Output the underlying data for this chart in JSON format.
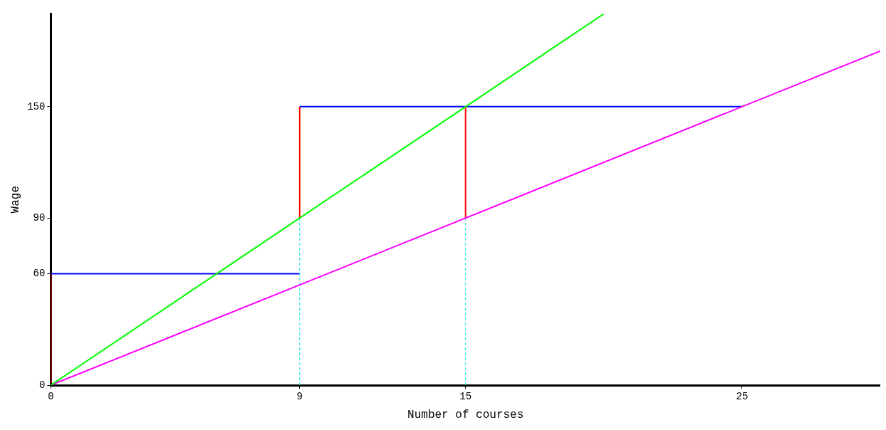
{
  "chart_data": {
    "type": "line",
    "xlabel": "Number of courses",
    "ylabel": "Wage",
    "xlim": [
      0,
      30
    ],
    "xticks": [
      0,
      9,
      15,
      25
    ],
    "ylim": [
      0,
      200
    ],
    "yticks": [
      0,
      60,
      90,
      150
    ],
    "grid": false,
    "legend": false,
    "marker": "none",
    "series": [
      {
        "color": "#00ff00",
        "x": [
          0,
          20
        ],
        "values": [
          0,
          200
        ],
        "line_style": "solid"
      },
      {
        "color": "#ff00ff",
        "x": [
          0,
          30
        ],
        "values": [
          0,
          180
        ],
        "line_style": "solid"
      },
      {
        "color": "#00e5ee",
        "x": [
          9,
          9,
          null,
          15,
          15
        ],
        "values": [
          0,
          90,
          null,
          0,
          90
        ],
        "line_style": "dashed"
      },
      {
        "color": "#0000ff",
        "x": [
          0,
          9,
          null,
          9,
          25
        ],
        "values": [
          60,
          60,
          null,
          150,
          150
        ],
        "line_style": "solid"
      },
      {
        "color": "#ff0000",
        "x": [
          0,
          0,
          null,
          9,
          9,
          null,
          15,
          15
        ],
        "values": [
          0,
          60,
          null,
          90,
          150,
          null,
          90,
          150
        ],
        "line_style": "solid"
      }
    ]
  }
}
